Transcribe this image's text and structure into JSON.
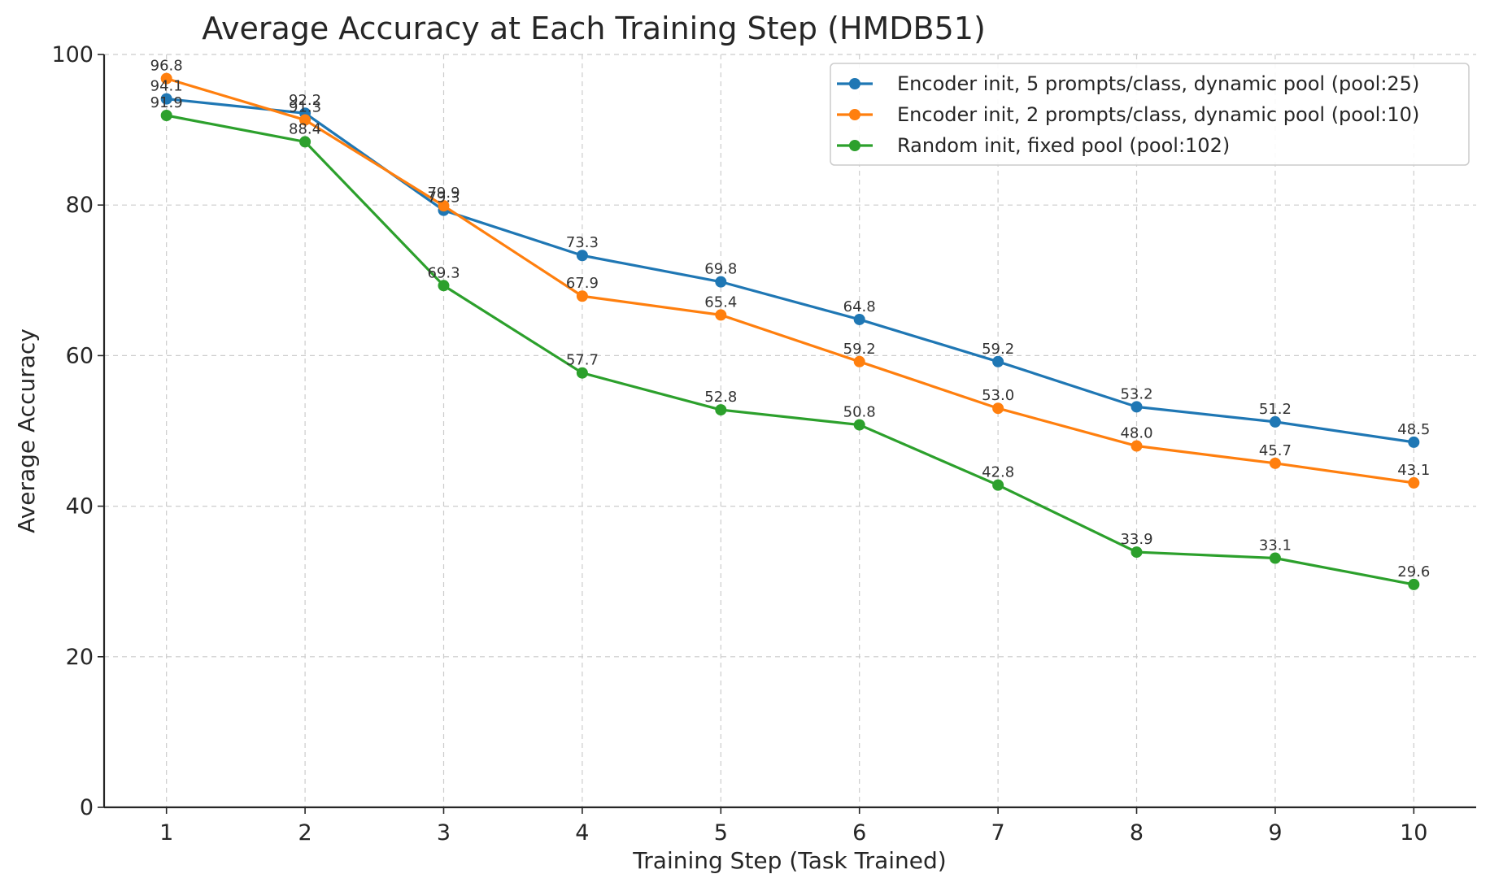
{
  "chart_data": {
    "type": "line",
    "title": "Average Accuracy at Each Training Step (HMDB51)",
    "xlabel": "Training Step (Task Trained)",
    "ylabel": "Average Accuracy",
    "x": [
      1,
      2,
      3,
      4,
      5,
      6,
      7,
      8,
      9,
      10
    ],
    "x_tick_labels": [
      "1",
      "2",
      "3",
      "4",
      "5",
      "6",
      "7",
      "8",
      "9",
      "10"
    ],
    "xlim": [
      0.55,
      10.45
    ],
    "ylim": [
      0,
      100
    ],
    "y_ticks": [
      0,
      20,
      40,
      60,
      80,
      100
    ],
    "y_tick_labels": [
      "0",
      "20",
      "40",
      "60",
      "80",
      "100"
    ],
    "grid": true,
    "legend_position": "top-right",
    "series": [
      {
        "name": "Encoder init, 5 prompts/class, dynamic pool (pool:25)",
        "color": "#1f77b4",
        "values": [
          94.1,
          92.2,
          79.3,
          73.3,
          69.8,
          64.8,
          59.2,
          53.2,
          51.2,
          48.5
        ],
        "labels": [
          "94.1",
          "92.2",
          "79.3",
          "73.3",
          "69.8",
          "64.8",
          "59.2",
          "53.2",
          "51.2",
          "48.5"
        ]
      },
      {
        "name": "Encoder init, 2 prompts/class, dynamic pool (pool:10)",
        "color": "#ff7f0e",
        "values": [
          96.8,
          91.3,
          79.9,
          67.9,
          65.4,
          59.2,
          53.0,
          48.0,
          45.7,
          43.1
        ],
        "labels": [
          "96.8",
          "91.3",
          "79.9",
          "67.9",
          "65.4",
          "59.2",
          "53.0",
          "48.0",
          "45.7",
          "43.1"
        ]
      },
      {
        "name": "Random init, fixed pool (pool:102)",
        "color": "#2ca02c",
        "values": [
          91.9,
          88.4,
          69.3,
          57.7,
          52.8,
          50.8,
          42.8,
          33.9,
          33.1,
          29.6
        ],
        "labels": [
          "91.9",
          "88.4",
          "69.3",
          "57.7",
          "52.8",
          "50.8",
          "42.8",
          "33.9",
          "33.1",
          "29.6"
        ]
      }
    ]
  }
}
